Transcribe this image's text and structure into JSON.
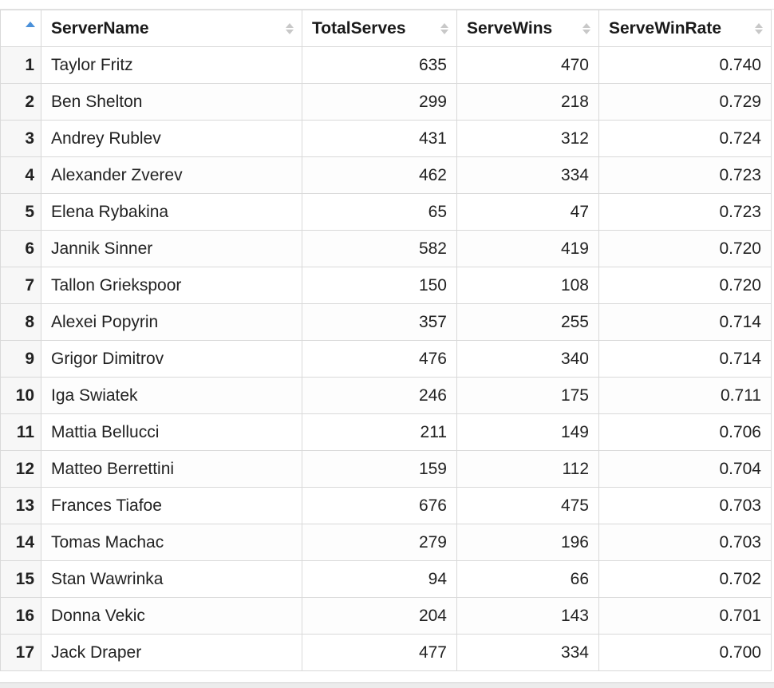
{
  "table": {
    "columns": [
      {
        "key": "ServerName",
        "label": "ServerName",
        "align": "left"
      },
      {
        "key": "TotalServes",
        "label": "TotalServes",
        "align": "right"
      },
      {
        "key": "ServeWins",
        "label": "ServeWins",
        "align": "right"
      },
      {
        "key": "ServeWinRate",
        "label": "ServeWinRate",
        "align": "right"
      }
    ],
    "sort": {
      "column": "index",
      "direction": "ascending"
    },
    "rows": [
      {
        "n": "1",
        "ServerName": "Taylor Fritz",
        "TotalServes": "635",
        "ServeWins": "470",
        "ServeWinRate": "0.740"
      },
      {
        "n": "2",
        "ServerName": "Ben Shelton",
        "TotalServes": "299",
        "ServeWins": "218",
        "ServeWinRate": "0.729"
      },
      {
        "n": "3",
        "ServerName": "Andrey Rublev",
        "TotalServes": "431",
        "ServeWins": "312",
        "ServeWinRate": "0.724"
      },
      {
        "n": "4",
        "ServerName": "Alexander Zverev",
        "TotalServes": "462",
        "ServeWins": "334",
        "ServeWinRate": "0.723"
      },
      {
        "n": "5",
        "ServerName": "Elena Rybakina",
        "TotalServes": "65",
        "ServeWins": "47",
        "ServeWinRate": "0.723"
      },
      {
        "n": "6",
        "ServerName": "Jannik Sinner",
        "TotalServes": "582",
        "ServeWins": "419",
        "ServeWinRate": "0.720"
      },
      {
        "n": "7",
        "ServerName": "Tallon Griekspoor",
        "TotalServes": "150",
        "ServeWins": "108",
        "ServeWinRate": "0.720"
      },
      {
        "n": "8",
        "ServerName": "Alexei Popyrin",
        "TotalServes": "357",
        "ServeWins": "255",
        "ServeWinRate": "0.714"
      },
      {
        "n": "9",
        "ServerName": "Grigor Dimitrov",
        "TotalServes": "476",
        "ServeWins": "340",
        "ServeWinRate": "0.714"
      },
      {
        "n": "10",
        "ServerName": "Iga Swiatek",
        "TotalServes": "246",
        "ServeWins": "175",
        "ServeWinRate": "0.711"
      },
      {
        "n": "11",
        "ServerName": "Mattia Bellucci",
        "TotalServes": "211",
        "ServeWins": "149",
        "ServeWinRate": "0.706"
      },
      {
        "n": "12",
        "ServerName": "Matteo Berrettini",
        "TotalServes": "159",
        "ServeWins": "112",
        "ServeWinRate": "0.704"
      },
      {
        "n": "13",
        "ServerName": "Frances Tiafoe",
        "TotalServes": "676",
        "ServeWins": "475",
        "ServeWinRate": "0.703"
      },
      {
        "n": "14",
        "ServerName": "Tomas Machac",
        "TotalServes": "279",
        "ServeWins": "196",
        "ServeWinRate": "0.703"
      },
      {
        "n": "15",
        "ServerName": "Stan Wawrinka",
        "TotalServes": "94",
        "ServeWins": "66",
        "ServeWinRate": "0.702"
      },
      {
        "n": "16",
        "ServerName": "Donna Vekic",
        "TotalServes": "204",
        "ServeWins": "143",
        "ServeWinRate": "0.701"
      },
      {
        "n": "17",
        "ServerName": "Jack Draper",
        "TotalServes": "477",
        "ServeWins": "334",
        "ServeWinRate": "0.700"
      }
    ]
  },
  "colors": {
    "sort_active": "#4a90d9",
    "sort_inactive": "#c8c8c8",
    "grid_line": "#d9d9d9",
    "rownum_bg": "#f7f7f7"
  },
  "icons": {
    "index_header": "sort-ascending-icon",
    "column_header": "sort-both-icon"
  }
}
